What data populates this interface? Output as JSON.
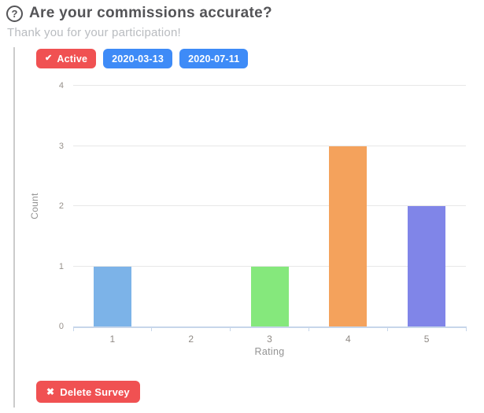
{
  "header": {
    "title": "Are your commissions accurate?",
    "subtitle": "Thank you for your participation!",
    "help_icon": "question-circle"
  },
  "survey": {
    "status_badge": {
      "label": "Active",
      "icon": "check",
      "bg": "#f05152"
    },
    "date_start": "2020-03-13",
    "date_end": "2020-07-11",
    "date_badge_bg": "#3e8bf7",
    "delete_button": {
      "label": "Delete Survey",
      "icon": "x",
      "bg": "#f05152"
    }
  },
  "chart_data": {
    "type": "bar",
    "categories": [
      "1",
      "2",
      "3",
      "4",
      "5"
    ],
    "values": [
      1,
      0,
      1,
      3,
      2
    ],
    "bar_colors": [
      "#7cb3e8",
      null,
      "#85e87c",
      "#f4a25c",
      "#8085e8"
    ],
    "title": "",
    "xlabel": "Rating",
    "ylabel": "Count",
    "ylim": [
      0,
      4
    ],
    "yticks": [
      0,
      1,
      2,
      3,
      4
    ],
    "grid": true,
    "legend": false,
    "grid_color": "#e7e7e7",
    "axis_color": "#c7d6ea"
  }
}
